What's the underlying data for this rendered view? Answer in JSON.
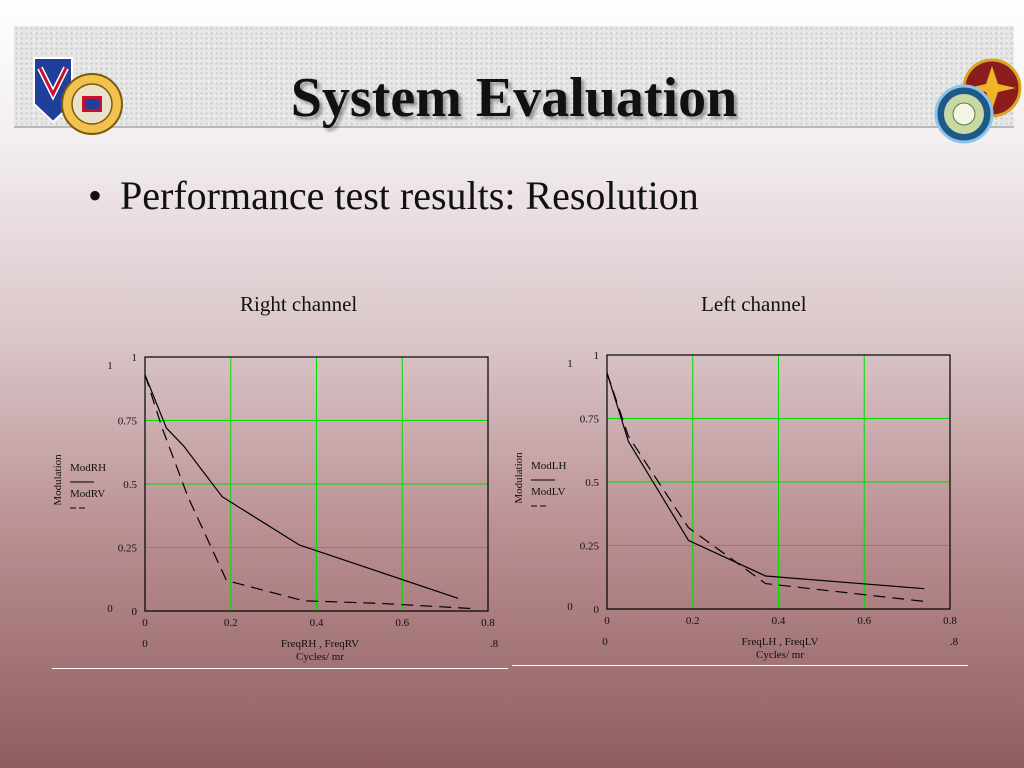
{
  "slide": {
    "title": "System Evaluation",
    "bullet": "Performance test results: Resolution"
  },
  "colors": {
    "grid": "#00dd00",
    "curve": "#000000",
    "frame": "#000000"
  },
  "chart_data": [
    {
      "type": "line",
      "title": "Right channel",
      "xlabel": "FreqRH , FreqRV",
      "xlabel2": "Cycles/ mr",
      "ylabel": "Modulation",
      "legend_top": "ModRH",
      "legend_bottom": "ModRV",
      "xlim": [
        0,
        0.8
      ],
      "ylim": [
        0,
        1
      ],
      "xticks": [
        "0",
        "0.2",
        "0.4",
        "0.6",
        "0.8"
      ],
      "yticks": [
        "0",
        "0.25",
        "0.5",
        "0.75",
        "1"
      ],
      "x_min_label": "0",
      "x_max_label": ".8",
      "y_min_label": "0",
      "y_max_label": "1",
      "grid": true,
      "series": [
        {
          "name": "ModRH",
          "dash": "solid",
          "x": [
            0.0,
            0.05,
            0.09,
            0.18,
            0.36,
            0.73
          ],
          "y": [
            0.93,
            0.72,
            0.65,
            0.45,
            0.26,
            0.05
          ]
        },
        {
          "name": "ModRV",
          "dash": "dashed",
          "x": [
            0.0,
            0.04,
            0.1,
            0.19,
            0.37,
            0.55,
            0.76
          ],
          "y": [
            0.93,
            0.72,
            0.45,
            0.12,
            0.04,
            0.03,
            0.01
          ]
        }
      ]
    },
    {
      "type": "line",
      "title": "Left channel",
      "xlabel": "FreqLH , FreqLV",
      "xlabel2": "Cycles/ mr",
      "ylabel": "Modulation",
      "legend_top": "ModLH",
      "legend_bottom": "ModLV",
      "xlim": [
        0,
        0.8
      ],
      "ylim": [
        0,
        1
      ],
      "xticks": [
        "0",
        "0.2",
        "0.4",
        "0.6",
        "0.8"
      ],
      "yticks": [
        "0",
        "0.25",
        "0.5",
        "0.75",
        "1"
      ],
      "x_min_label": "0",
      "x_max_label": ".8",
      "y_min_label": "0",
      "y_max_label": "1",
      "grid": true,
      "series": [
        {
          "name": "ModLH",
          "dash": "solid",
          "x": [
            0.0,
            0.05,
            0.19,
            0.37,
            0.74
          ],
          "y": [
            0.93,
            0.66,
            0.27,
            0.13,
            0.08
          ]
        },
        {
          "name": "ModLV",
          "dash": "dashed",
          "x": [
            0.0,
            0.05,
            0.19,
            0.37,
            0.74
          ],
          "y": [
            0.93,
            0.68,
            0.32,
            0.1,
            0.03
          ]
        }
      ]
    }
  ]
}
